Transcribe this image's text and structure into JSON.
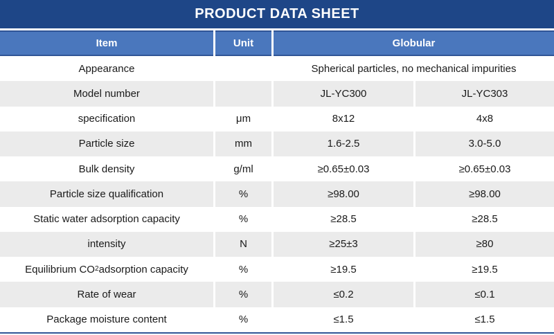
{
  "title": "PRODUCT DATA SHEET",
  "colors": {
    "title_bar": "#1e4687",
    "header_background": "#4a77bd",
    "header_border": "#2f5496",
    "row_shade": "#ebebeb",
    "text": "#1a1a1a"
  },
  "table": {
    "headers": [
      "Item",
      "Unit",
      "Globular"
    ],
    "rows": [
      {
        "item": "Appearance",
        "unit": "",
        "values": [
          "Spherical particles, no mechanical impurities"
        ]
      },
      {
        "item": "Model number",
        "unit": "",
        "values": [
          "JL-YC300",
          "JL-YC303"
        ]
      },
      {
        "item": "specification",
        "unit": "μm",
        "values": [
          "8x12",
          "4x8"
        ]
      },
      {
        "item": "Particle size",
        "unit": "mm",
        "values": [
          "1.6-2.5",
          "3.0-5.0"
        ]
      },
      {
        "item": "Bulk density",
        "unit": "g/ml",
        "values": [
          "≥0.65±0.03",
          "≥0.65±0.03"
        ]
      },
      {
        "item": "Particle size qualification",
        "unit": "%",
        "values": [
          "≥98.00",
          "≥98.00"
        ]
      },
      {
        "item": "Static water adsorption capacity",
        "unit": "%",
        "values": [
          "≥28.5",
          "≥28.5"
        ]
      },
      {
        "item": "intensity",
        "unit": "N",
        "values": [
          "≥25±3",
          "≥80"
        ]
      },
      {
        "item": [
          "Equilibrium CO",
          {
            "sub": "2"
          },
          " adsorption capacity"
        ],
        "unit": "%",
        "values": [
          "≥19.5",
          "≥19.5"
        ]
      },
      {
        "item": "Rate of wear",
        "unit": "%",
        "values": [
          "≤0.2",
          "≤0.1"
        ]
      },
      {
        "item": "Package moisture content",
        "unit": "%",
        "values": [
          "≤1.5",
          "≤1.5"
        ]
      }
    ]
  }
}
